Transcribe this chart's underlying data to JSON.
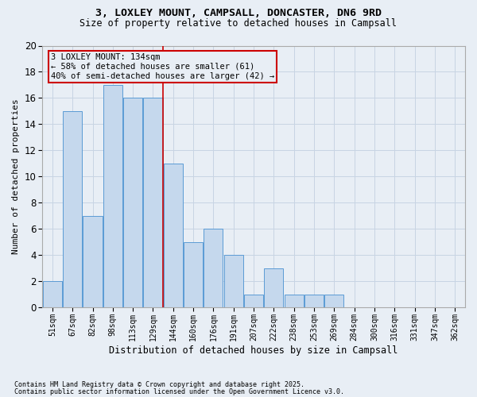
{
  "title_line1": "3, LOXLEY MOUNT, CAMPSALL, DONCASTER, DN6 9RD",
  "title_line2": "Size of property relative to detached houses in Campsall",
  "xlabel": "Distribution of detached houses by size in Campsall",
  "ylabel": "Number of detached properties",
  "footnote1": "Contains HM Land Registry data © Crown copyright and database right 2025.",
  "footnote2": "Contains public sector information licensed under the Open Government Licence v3.0.",
  "bar_labels": [
    "51sqm",
    "67sqm",
    "82sqm",
    "98sqm",
    "113sqm",
    "129sqm",
    "144sqm",
    "160sqm",
    "176sqm",
    "191sqm",
    "207sqm",
    "222sqm",
    "238sqm",
    "253sqm",
    "269sqm",
    "284sqm",
    "300sqm",
    "316sqm",
    "331sqm",
    "347sqm",
    "362sqm"
  ],
  "bar_values": [
    2,
    15,
    7,
    17,
    16,
    16,
    11,
    5,
    6,
    4,
    1,
    3,
    1,
    1,
    1,
    0,
    0,
    0,
    0,
    0,
    0
  ],
  "bar_color": "#c5d8ed",
  "bar_edge_color": "#5b9bd5",
  "grid_color": "#c8d4e3",
  "bg_color": "#e8eef5",
  "annotation_box_color": "#cc0000",
  "vline_color": "#cc0000",
  "vline_x_index": 5.5,
  "annotation_text": "3 LOXLEY MOUNT: 134sqm\n← 58% of detached houses are smaller (61)\n40% of semi-detached houses are larger (42) →",
  "ylim": [
    0,
    20
  ],
  "yticks": [
    0,
    2,
    4,
    6,
    8,
    10,
    12,
    14,
    16,
    18,
    20
  ]
}
